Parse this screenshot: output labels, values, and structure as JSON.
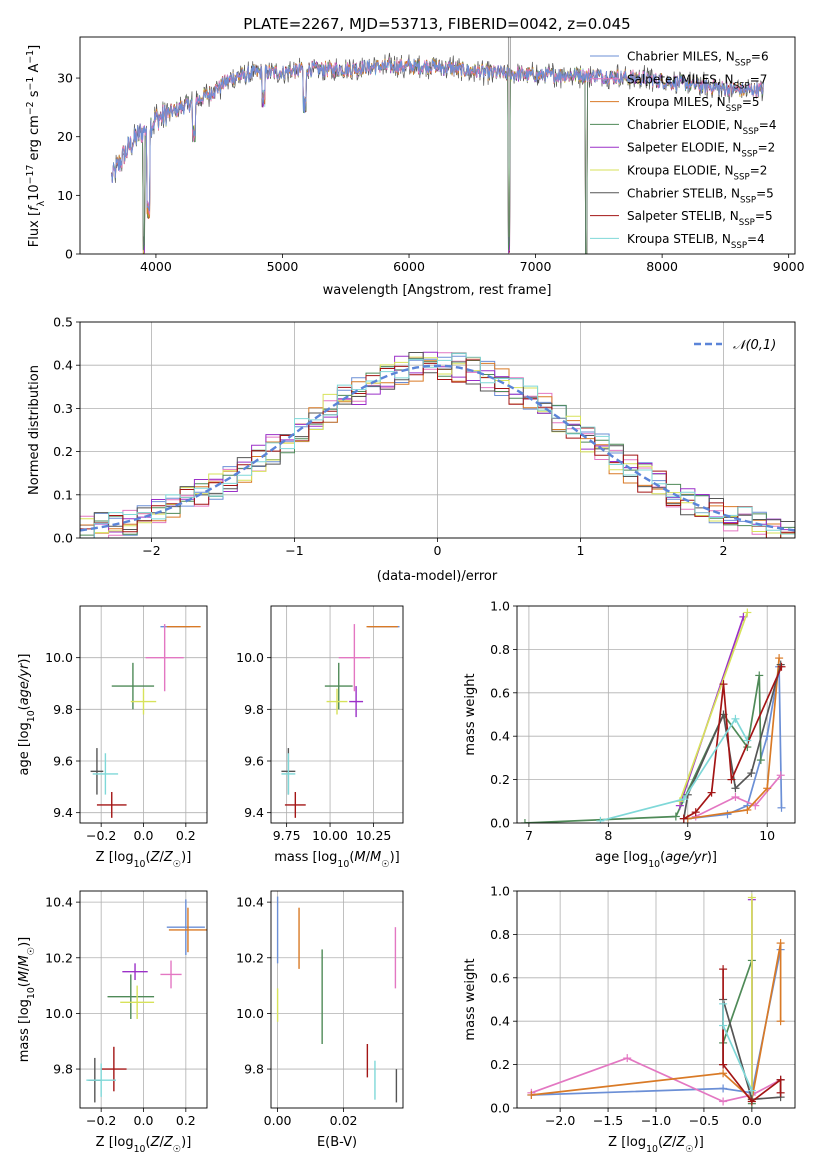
{
  "colors": {
    "Chabrier MILES": "#6b8fd6",
    "Salpeter MILES": "#e377c2",
    "Kroupa MILES": "#d97a26",
    "Chabrier ELODIE": "#4f8a58",
    "Salpeter ELODIE": "#9b30c8",
    "Kroupa ELODIE": "#d7e25a",
    "Chabrier STELIB": "#555555",
    "Salpeter STELIB": "#a31515",
    "Kroupa STELIB": "#7fd8d8"
  },
  "chart_data": [
    {
      "id": "spectrum",
      "type": "line",
      "title": "PLATE=2267, MJD=53713, FIBERID=0042, z=0.045",
      "xlabel": "wavelength [Angstrom, rest frame]",
      "ylabel": "Flux [f_λ10^{-17} erg cm^{-2} s^{-1} A^{-1}]",
      "xlim": [
        3400,
        9050
      ],
      "ylim": [
        0,
        37
      ],
      "xticks": [
        4000,
        5000,
        6000,
        7000,
        8000,
        9000
      ],
      "yticks": [
        0,
        10,
        20,
        30
      ],
      "grid": false,
      "legend_position": "right",
      "series": [
        {
          "name": "Chabrier MILES",
          "nssp": "6"
        },
        {
          "name": "Salpeter MILES",
          "nssp": "7"
        },
        {
          "name": "Kroupa MILES",
          "nssp": "5"
        },
        {
          "name": "Chabrier ELODIE",
          "nssp": "4"
        },
        {
          "name": "Salpeter ELODIE",
          "nssp": "2"
        },
        {
          "name": "Kroupa ELODIE",
          "nssp": "2"
        },
        {
          "name": "Chabrier STELIB",
          "nssp": "5"
        },
        {
          "name": "Salpeter STELIB",
          "nssp": "5"
        },
        {
          "name": "Kroupa STELIB",
          "nssp": "4"
        }
      ],
      "continuum": {
        "x": [
          3650,
          3750,
          3850,
          4000,
          4200,
          4400,
          4600,
          4800,
          5000,
          5200,
          5500,
          5800,
          6200,
          6600,
          7000,
          7400,
          7800,
          8200,
          8600,
          8800
        ],
        "y": [
          13,
          17,
          20,
          23,
          25,
          27,
          30,
          31,
          31,
          31.5,
          31.5,
          32,
          32,
          31,
          30.5,
          30.5,
          30,
          29,
          28,
          28
        ]
      },
      "dips": [
        {
          "x": 3905,
          "y": 0
        },
        {
          "x": 3940,
          "y": 6
        },
        {
          "x": 4300,
          "y": 19
        },
        {
          "x": 4850,
          "y": 25
        },
        {
          "x": 5175,
          "y": 24
        },
        {
          "x": 6790,
          "y": 0
        },
        {
          "x": 7400,
          "y": 0
        }
      ],
      "spikes": [
        {
          "x": 6785,
          "y": 37
        },
        {
          "x": 6800,
          "y": 37
        }
      ]
    },
    {
      "id": "residuals",
      "type": "histogram",
      "xlabel": "(data-model)/error",
      "ylabel": "Normed distribution",
      "xlim": [
        -2.5,
        2.5
      ],
      "ylim": [
        0,
        0.5
      ],
      "xticks": [
        -2,
        -1,
        0,
        1,
        2
      ],
      "yticks": [
        0.0,
        0.1,
        0.2,
        0.3,
        0.4,
        0.5
      ],
      "grid": true,
      "bin_width": 0.1,
      "legend_position": "top-right",
      "reference": {
        "name": "𝒩(0,1)",
        "mean": 0,
        "sigma": 1
      }
    },
    {
      "id": "age-vs-Z",
      "type": "scatter",
      "xlabel": "Z [log₁₀(Z/Z☉)]",
      "ylabel": "age  [log₁₀(age/yr)]",
      "xlim": [
        -0.3,
        0.3
      ],
      "ylim": [
        9.36,
        10.2
      ],
      "xticks": [
        -0.2,
        0.0,
        0.2
      ],
      "yticks": [
        9.4,
        9.6,
        9.8,
        10.0
      ],
      "grid": true,
      "points": [
        {
          "series": "Chabrier MILES",
          "x": 0.15,
          "y": 10.12,
          "xerr": 0.07,
          "yerr": 0.0
        },
        {
          "series": "Kroupa MILES",
          "x": 0.19,
          "y": 10.12,
          "xerr": 0.08,
          "yerr": 0.0
        },
        {
          "series": "Salpeter MILES",
          "x": 0.1,
          "y": 10.0,
          "xerr": 0.09,
          "yerr": 0.13
        },
        {
          "series": "Chabrier ELODIE",
          "x": -0.05,
          "y": 9.89,
          "xerr": 0.1,
          "yerr": 0.09
        },
        {
          "series": "Kroupa ELODIE",
          "x": 0.0,
          "y": 9.83,
          "xerr": 0.06,
          "yerr": 0.05
        },
        {
          "series": "Chabrier STELIB",
          "x": -0.22,
          "y": 9.56,
          "xerr": 0.03,
          "yerr": 0.09
        },
        {
          "series": "Kroupa STELIB",
          "x": -0.18,
          "y": 9.55,
          "xerr": 0.06,
          "yerr": 0.08
        },
        {
          "series": "Salpeter STELIB",
          "x": -0.15,
          "y": 9.43,
          "xerr": 0.07,
          "yerr": 0.05
        }
      ]
    },
    {
      "id": "age-vs-mass",
      "type": "scatter",
      "xlabel": "mass [log₁₀(M/M☉)]",
      "ylabel": "",
      "xlim": [
        9.66,
        10.42
      ],
      "ylim": [
        9.36,
        10.2
      ],
      "xticks": [
        9.75,
        10.0,
        10.25
      ],
      "xticklabels": [
        "9.75",
        "10.00",
        "10.25"
      ],
      "yticks": [
        9.4,
        9.6,
        9.8,
        10.0
      ],
      "grid": true,
      "points": [
        {
          "series": "Chabrier MILES",
          "x": 10.31,
          "y": 10.12,
          "xerr": 0.09,
          "yerr": 0.0
        },
        {
          "series": "Kroupa MILES",
          "x": 10.3,
          "y": 10.12,
          "xerr": 0.09,
          "yerr": 0.0
        },
        {
          "series": "Salpeter MILES",
          "x": 10.14,
          "y": 10.0,
          "xerr": 0.09,
          "yerr": 0.13
        },
        {
          "series": "Chabrier ELODIE",
          "x": 10.05,
          "y": 9.89,
          "xerr": 0.08,
          "yerr": 0.09
        },
        {
          "series": "Salpeter ELODIE",
          "x": 10.15,
          "y": 9.83,
          "xerr": 0.04,
          "yerr": 0.06
        },
        {
          "series": "Kroupa ELODIE",
          "x": 10.04,
          "y": 9.83,
          "xerr": 0.06,
          "yerr": 0.05
        },
        {
          "series": "Chabrier STELIB",
          "x": 9.76,
          "y": 9.56,
          "xerr": 0.04,
          "yerr": 0.09
        },
        {
          "series": "Kroupa STELIB",
          "x": 9.76,
          "y": 9.55,
          "xerr": 0.04,
          "yerr": 0.08
        },
        {
          "series": "Salpeter STELIB",
          "x": 9.8,
          "y": 9.43,
          "xerr": 0.06,
          "yerr": 0.05
        }
      ]
    },
    {
      "id": "weight-vs-age",
      "type": "line",
      "xlabel": "age  [log₁₀(age/yr)]",
      "ylabel": "mass weight",
      "xlim": [
        6.85,
        10.35
      ],
      "ylim": [
        0,
        1
      ],
      "xticks": [
        7,
        8,
        9,
        10
      ],
      "yticks": [
        0.0,
        0.2,
        0.4,
        0.6,
        0.8,
        1.0
      ],
      "grid": true,
      "series": [
        {
          "name": "Chabrier MILES",
          "x": [
            9.0,
            9.5,
            9.75,
            10.0,
            10.15,
            10.18
          ],
          "y": [
            0.02,
            0.04,
            0.08,
            0.4,
            0.72,
            0.07
          ]
        },
        {
          "name": "Salpeter MILES",
          "x": [
            9.1,
            9.6,
            9.85,
            10.17
          ],
          "y": [
            0.03,
            0.12,
            0.08,
            0.22
          ]
        },
        {
          "name": "Kroupa MILES",
          "x": [
            9.0,
            9.75,
            10.0,
            10.15
          ],
          "y": [
            0.02,
            0.06,
            0.16,
            0.76
          ]
        },
        {
          "name": "Chabrier ELODIE",
          "x": [
            6.95,
            8.85,
            9.45,
            9.75,
            9.9,
            9.92
          ],
          "y": [
            0.0,
            0.03,
            0.5,
            0.35,
            0.68,
            0.29
          ]
        },
        {
          "name": "Salpeter ELODIE",
          "x": [
            8.9,
            9.7
          ],
          "y": [
            0.08,
            0.95
          ]
        },
        {
          "name": "Kroupa ELODIE",
          "x": [
            8.9,
            9.75
          ],
          "y": [
            0.1,
            0.97
          ]
        },
        {
          "name": "Chabrier STELIB",
          "x": [
            8.95,
            9.0,
            9.45,
            9.6,
            9.8,
            10.17
          ],
          "y": [
            0.02,
            0.13,
            0.5,
            0.16,
            0.23,
            0.73
          ]
        },
        {
          "name": "Salpeter STELIB",
          "x": [
            8.95,
            9.1,
            9.3,
            9.45,
            9.55,
            10.18
          ],
          "y": [
            0.02,
            0.05,
            0.14,
            0.64,
            0.2,
            0.72
          ]
        },
        {
          "name": "Kroupa STELIB",
          "x": [
            7.9,
            8.95,
            9.6,
            9.75
          ],
          "y": [
            0.01,
            0.11,
            0.48,
            0.38
          ]
        }
      ]
    },
    {
      "id": "mass-vs-Z",
      "type": "scatter",
      "xlabel": "Z [log₁₀(Z/Z☉)]",
      "ylabel": "mass [log₁₀(M/M☉)]",
      "xlim": [
        -0.3,
        0.3
      ],
      "ylim": [
        9.66,
        10.44
      ],
      "xticks": [
        -0.2,
        0.0,
        0.2
      ],
      "yticks": [
        9.8,
        10.0,
        10.2,
        10.4
      ],
      "grid": true,
      "points": [
        {
          "series": "Chabrier MILES",
          "x": 0.2,
          "y": 10.31,
          "xerr": 0.09,
          "yerr": 0.1
        },
        {
          "series": "Kroupa MILES",
          "x": 0.21,
          "y": 10.3,
          "xerr": 0.09,
          "yerr": 0.08
        },
        {
          "series": "Salpeter MILES",
          "x": 0.13,
          "y": 10.14,
          "xerr": 0.05,
          "yerr": 0.05
        },
        {
          "series": "Salpeter ELODIE",
          "x": -0.04,
          "y": 10.15,
          "xerr": 0.06,
          "yerr": 0.03
        },
        {
          "series": "Chabrier ELODIE",
          "x": -0.06,
          "y": 10.06,
          "xerr": 0.11,
          "yerr": 0.08
        },
        {
          "series": "Kroupa ELODIE",
          "x": -0.03,
          "y": 10.04,
          "xerr": 0.08,
          "yerr": 0.06
        },
        {
          "series": "Salpeter STELIB",
          "x": -0.14,
          "y": 9.8,
          "xerr": 0.06,
          "yerr": 0.08
        },
        {
          "series": "Chabrier STELIB",
          "x": -0.23,
          "y": 9.76,
          "xerr": 0.03,
          "yerr": 0.08
        },
        {
          "series": "Kroupa STELIB",
          "x": -0.2,
          "y": 9.76,
          "xerr": 0.07,
          "yerr": 0.06
        }
      ]
    },
    {
      "id": "mass-vs-EBV",
      "type": "scatter",
      "xlabel": "E(B-V)",
      "ylabel": "",
      "xlim": [
        -0.002,
        0.038
      ],
      "ylim": [
        9.66,
        10.44
      ],
      "xticks": [
        0.0,
        0.02
      ],
      "xticklabels": [
        "0.00",
        "0.02"
      ],
      "yticks": [
        9.8,
        10.0,
        10.2,
        10.4
      ],
      "grid": true,
      "points": [
        {
          "series": "Chabrier MILES",
          "x": 0.0,
          "y": 10.3,
          "xerr": 0.0,
          "yerr": 0.12
        },
        {
          "series": "Kroupa ELODIE",
          "x": 0.0,
          "y": 10.03,
          "xerr": 0.0,
          "yerr": 0.06
        },
        {
          "series": "Kroupa MILES",
          "x": 0.0065,
          "y": 10.27,
          "xerr": 0.0,
          "yerr": 0.11
        },
        {
          "series": "Chabrier ELODIE",
          "x": 0.0135,
          "y": 10.06,
          "xerr": 0.0,
          "yerr": 0.17
        },
        {
          "series": "Salpeter STELIB",
          "x": 0.0272,
          "y": 9.83,
          "xerr": 0.0,
          "yerr": 0.06
        },
        {
          "series": "Kroupa STELIB",
          "x": 0.0295,
          "y": 9.76,
          "xerr": 0.0,
          "yerr": 0.07
        },
        {
          "series": "Salpeter MILES",
          "x": 0.0357,
          "y": 10.2,
          "xerr": 0.0,
          "yerr": 0.11
        },
        {
          "series": "Chabrier STELIB",
          "x": 0.036,
          "y": 9.74,
          "xerr": 0.0,
          "yerr": 0.06
        }
      ]
    },
    {
      "id": "weight-vs-Z",
      "type": "line",
      "xlabel": "Z [log₁₀(Z/Z☉)]",
      "ylabel": "mass weight",
      "xlim": [
        -2.45,
        0.45
      ],
      "ylim": [
        0,
        1
      ],
      "xticks": [
        -2.0,
        -1.5,
        -1.0,
        -0.5,
        0.0
      ],
      "yticks": [
        0.0,
        0.2,
        0.4,
        0.6,
        0.8,
        1.0
      ],
      "grid": true,
      "series": [
        {
          "name": "Chabrier MILES",
          "x": [
            -2.3,
            -0.3,
            0.0,
            0.3
          ],
          "y": [
            0.06,
            0.09,
            0.07,
            0.73
          ]
        },
        {
          "name": "Salpeter MILES",
          "x": [
            -2.3,
            -1.3,
            -0.3,
            0.0,
            0.3
          ],
          "y": [
            0.07,
            0.23,
            0.03,
            0.06,
            0.13
          ]
        },
        {
          "name": "Kroupa MILES",
          "x": [
            -2.3,
            -0.3,
            0.0,
            0.3,
            0.3
          ],
          "y": [
            0.06,
            0.16,
            0.04,
            0.76,
            0.4
          ]
        },
        {
          "name": "Chabrier ELODIE",
          "x": [
            -0.3,
            0.0,
            0.0
          ],
          "y": [
            0.3,
            0.68,
            0.02
          ]
        },
        {
          "name": "Salpeter ELODIE",
          "x": [
            0.0,
            0.0
          ],
          "y": [
            0.03,
            0.96
          ]
        },
        {
          "name": "Kroupa ELODIE",
          "x": [
            0.0,
            0.0
          ],
          "y": [
            0.03,
            0.97
          ]
        },
        {
          "name": "Chabrier STELIB",
          "x": [
            -0.3,
            -0.3,
            0.0,
            0.3,
            0.3
          ],
          "y": [
            0.2,
            0.5,
            0.04,
            0.05,
            0.13
          ]
        },
        {
          "name": "Salpeter STELIB",
          "x": [
            -0.3,
            -0.3,
            0.0,
            0.3,
            0.3
          ],
          "y": [
            0.64,
            0.2,
            0.03,
            0.13,
            0.07
          ]
        },
        {
          "name": "Kroupa STELIB",
          "x": [
            -0.3,
            -0.3,
            0.0
          ],
          "y": [
            0.48,
            0.38,
            0.08
          ]
        }
      ]
    }
  ]
}
